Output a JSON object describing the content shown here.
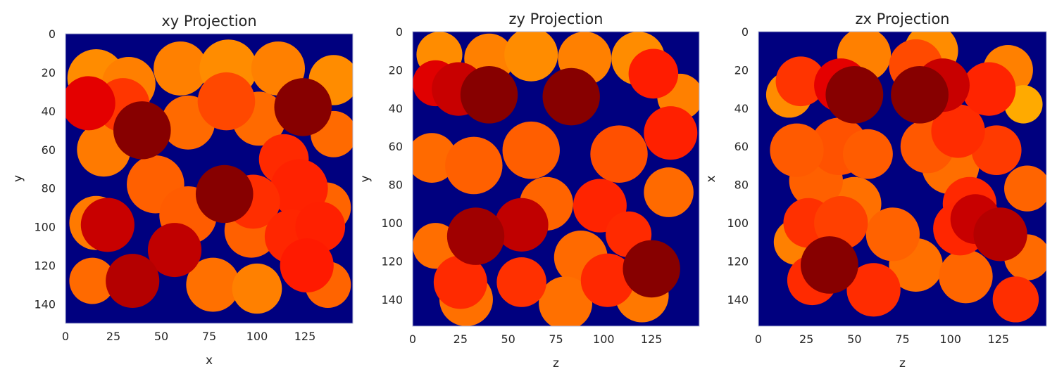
{
  "chart_data": [
    {
      "type": "heatmap",
      "title": "xy Projection",
      "xlabel": "x",
      "ylabel": "y",
      "xlim": [
        0,
        150
      ],
      "ylim": [
        150,
        0
      ],
      "xticks": [
        0,
        25,
        50,
        75,
        100,
        125
      ],
      "yticks": [
        0,
        20,
        40,
        60,
        80,
        100,
        120,
        140
      ],
      "grid": false,
      "background_color": "#00007f",
      "circles": [
        {
          "cx": 16,
          "cy": 23,
          "r": 15,
          "color": "#ff8c00"
        },
        {
          "cx": 33,
          "cy": 26,
          "r": 14,
          "color": "#ff7f00"
        },
        {
          "cx": 60,
          "cy": 18,
          "r": 14,
          "color": "#ff8000"
        },
        {
          "cx": 85,
          "cy": 18,
          "r": 15,
          "color": "#ff8c00"
        },
        {
          "cx": 111,
          "cy": 18,
          "r": 14,
          "color": "#ff8000"
        },
        {
          "cx": 140,
          "cy": 24,
          "r": 13,
          "color": "#ff8c00"
        },
        {
          "cx": 20,
          "cy": 60,
          "r": 14,
          "color": "#ff7a00"
        },
        {
          "cx": 64,
          "cy": 46,
          "r": 14,
          "color": "#ff6a00"
        },
        {
          "cx": 101,
          "cy": 44,
          "r": 14,
          "color": "#ff6a00"
        },
        {
          "cx": 140,
          "cy": 52,
          "r": 12,
          "color": "#ff6a00"
        },
        {
          "cx": 16,
          "cy": 98,
          "r": 14,
          "color": "#ff7a00"
        },
        {
          "cx": 47,
          "cy": 78,
          "r": 15,
          "color": "#ff6000"
        },
        {
          "cx": 64,
          "cy": 94,
          "r": 15,
          "color": "#ff5c00"
        },
        {
          "cx": 97,
          "cy": 102,
          "r": 14,
          "color": "#ff6000"
        },
        {
          "cx": 136,
          "cy": 90,
          "r": 13,
          "color": "#ff6400"
        },
        {
          "cx": 14,
          "cy": 128,
          "r": 12,
          "color": "#ff6a00"
        },
        {
          "cx": 77,
          "cy": 130,
          "r": 14,
          "color": "#ff7000"
        },
        {
          "cx": 137,
          "cy": 130,
          "r": 12,
          "color": "#ff6400"
        },
        {
          "cx": 100,
          "cy": 132,
          "r": 13,
          "color": "#ff8000"
        },
        {
          "cx": 84,
          "cy": 35,
          "r": 15,
          "color": "#ff4800"
        },
        {
          "cx": 30,
          "cy": 37,
          "r": 14,
          "color": "#ff3600"
        },
        {
          "cx": 114,
          "cy": 65,
          "r": 13,
          "color": "#ff2a00"
        },
        {
          "cx": 122,
          "cy": 80,
          "r": 15,
          "color": "#ff2200"
        },
        {
          "cx": 98,
          "cy": 87,
          "r": 14,
          "color": "#ff2e00"
        },
        {
          "cx": 118,
          "cy": 105,
          "r": 14,
          "color": "#ff2600"
        },
        {
          "cx": 133,
          "cy": 100,
          "r": 13,
          "color": "#ff2000"
        },
        {
          "cx": 126,
          "cy": 120,
          "r": 14,
          "color": "#ff1a00"
        },
        {
          "cx": 12,
          "cy": 36,
          "r": 14,
          "color": "#e40000"
        },
        {
          "cx": 22,
          "cy": 99,
          "r": 14,
          "color": "#c80000"
        },
        {
          "cx": 57,
          "cy": 112,
          "r": 14,
          "color": "#c00000"
        },
        {
          "cx": 35,
          "cy": 128,
          "r": 14,
          "color": "#b40000"
        },
        {
          "cx": 40,
          "cy": 50,
          "r": 15,
          "color": "#870000"
        },
        {
          "cx": 83,
          "cy": 83,
          "r": 15,
          "color": "#870000"
        },
        {
          "cx": 124,
          "cy": 38,
          "r": 15,
          "color": "#870000"
        }
      ]
    },
    {
      "type": "heatmap",
      "title": "zy Projection",
      "xlabel": "z",
      "ylabel": "y",
      "xlim": [
        0,
        150
      ],
      "ylim": [
        154,
        0
      ],
      "xticks": [
        0,
        25,
        50,
        75,
        100,
        125
      ],
      "yticks": [
        0,
        20,
        40,
        60,
        80,
        100,
        120,
        140
      ],
      "grid": false,
      "background_color": "#00007f",
      "circles": [
        {
          "cx": 14,
          "cy": 12,
          "r": 12,
          "color": "#ff8c00"
        },
        {
          "cx": 40,
          "cy": 14,
          "r": 13,
          "color": "#ff8000"
        },
        {
          "cx": 62,
          "cy": 12,
          "r": 14,
          "color": "#ff8c00"
        },
        {
          "cx": 90,
          "cy": 14,
          "r": 14,
          "color": "#ff8000"
        },
        {
          "cx": 118,
          "cy": 14,
          "r": 14,
          "color": "#ff8c00"
        },
        {
          "cx": 140,
          "cy": 34,
          "r": 12,
          "color": "#ff8000"
        },
        {
          "cx": 10,
          "cy": 66,
          "r": 13,
          "color": "#ff6a00"
        },
        {
          "cx": 32,
          "cy": 70,
          "r": 15,
          "color": "#ff6000"
        },
        {
          "cx": 62,
          "cy": 62,
          "r": 15,
          "color": "#ff5e00"
        },
        {
          "cx": 70,
          "cy": 90,
          "r": 14,
          "color": "#ff6400"
        },
        {
          "cx": 108,
          "cy": 64,
          "r": 15,
          "color": "#ff5000"
        },
        {
          "cx": 12,
          "cy": 112,
          "r": 12,
          "color": "#ff6e00"
        },
        {
          "cx": 88,
          "cy": 118,
          "r": 14,
          "color": "#ff6a00"
        },
        {
          "cx": 28,
          "cy": 140,
          "r": 14,
          "color": "#ff7000"
        },
        {
          "cx": 80,
          "cy": 142,
          "r": 14,
          "color": "#ff7000"
        },
        {
          "cx": 120,
          "cy": 138,
          "r": 14,
          "color": "#ff7800"
        },
        {
          "cx": 134,
          "cy": 84,
          "r": 13,
          "color": "#ff6a00"
        },
        {
          "cx": 57,
          "cy": 131,
          "r": 13,
          "color": "#ff3000"
        },
        {
          "cx": 102,
          "cy": 130,
          "r": 14,
          "color": "#ff2800"
        },
        {
          "cx": 25,
          "cy": 131,
          "r": 14,
          "color": "#ff2a00"
        },
        {
          "cx": 98,
          "cy": 91,
          "r": 14,
          "color": "#ff2400"
        },
        {
          "cx": 113,
          "cy": 106,
          "r": 12,
          "color": "#ff2a00"
        },
        {
          "cx": 135,
          "cy": 53,
          "r": 14,
          "color": "#ff2000"
        },
        {
          "cx": 126,
          "cy": 22,
          "r": 13,
          "color": "#ff1c00"
        },
        {
          "cx": 12,
          "cy": 27,
          "r": 12,
          "color": "#e00000"
        },
        {
          "cx": 24,
          "cy": 30,
          "r": 14,
          "color": "#c80000"
        },
        {
          "cx": 57,
          "cy": 101,
          "r": 14,
          "color": "#c00000"
        },
        {
          "cx": 40,
          "cy": 33,
          "r": 15,
          "color": "#870000"
        },
        {
          "cx": 83,
          "cy": 34,
          "r": 15,
          "color": "#870000"
        },
        {
          "cx": 33,
          "cy": 107,
          "r": 15,
          "color": "#a00000"
        },
        {
          "cx": 125,
          "cy": 124,
          "r": 15,
          "color": "#870000"
        }
      ]
    },
    {
      "type": "heatmap",
      "title": "zx Projection",
      "xlabel": "z",
      "ylabel": "x",
      "xlim": [
        0,
        150
      ],
      "ylim": [
        154,
        0
      ],
      "xticks": [
        0,
        25,
        50,
        75,
        100,
        125
      ],
      "yticks": [
        0,
        20,
        40,
        60,
        80,
        100,
        120,
        140
      ],
      "grid": false,
      "background_color": "#00007f",
      "circles": [
        {
          "cx": 16,
          "cy": 33,
          "r": 12,
          "color": "#ff8c00"
        },
        {
          "cx": 55,
          "cy": 12,
          "r": 14,
          "color": "#ff8000"
        },
        {
          "cx": 90,
          "cy": 10,
          "r": 14,
          "color": "#ff8c00"
        },
        {
          "cx": 130,
          "cy": 20,
          "r": 13,
          "color": "#ff8000"
        },
        {
          "cx": 138,
          "cy": 38,
          "r": 10,
          "color": "#ffaa00"
        },
        {
          "cx": 20,
          "cy": 110,
          "r": 12,
          "color": "#ff8000"
        },
        {
          "cx": 50,
          "cy": 90,
          "r": 14,
          "color": "#ff7000"
        },
        {
          "cx": 100,
          "cy": 70,
          "r": 15,
          "color": "#ff6e00"
        },
        {
          "cx": 140,
          "cy": 82,
          "r": 12,
          "color": "#ff6400"
        },
        {
          "cx": 140,
          "cy": 118,
          "r": 12,
          "color": "#ff6a00"
        },
        {
          "cx": 82,
          "cy": 122,
          "r": 14,
          "color": "#ff7000"
        },
        {
          "cx": 70,
          "cy": 106,
          "r": 14,
          "color": "#ff6200"
        },
        {
          "cx": 108,
          "cy": 128,
          "r": 14,
          "color": "#ff6600"
        },
        {
          "cx": 30,
          "cy": 78,
          "r": 14,
          "color": "#ff6000"
        },
        {
          "cx": 42,
          "cy": 60,
          "r": 15,
          "color": "#ff5200"
        },
        {
          "cx": 57,
          "cy": 64,
          "r": 13,
          "color": "#ff5c00"
        },
        {
          "cx": 88,
          "cy": 60,
          "r": 14,
          "color": "#ff5800"
        },
        {
          "cx": 20,
          "cy": 62,
          "r": 14,
          "color": "#ff5a00"
        },
        {
          "cx": 124,
          "cy": 62,
          "r": 13,
          "color": "#ff3a00"
        },
        {
          "cx": 104,
          "cy": 52,
          "r": 14,
          "color": "#ff2c00"
        },
        {
          "cx": 22,
          "cy": 26,
          "r": 13,
          "color": "#ff3400"
        },
        {
          "cx": 120,
          "cy": 30,
          "r": 14,
          "color": "#ff2400"
        },
        {
          "cx": 82,
          "cy": 18,
          "r": 14,
          "color": "#ff4a00"
        },
        {
          "cx": 110,
          "cy": 90,
          "r": 14,
          "color": "#ff2800"
        },
        {
          "cx": 105,
          "cy": 103,
          "r": 14,
          "color": "#ff2600"
        },
        {
          "cx": 26,
          "cy": 100,
          "r": 13,
          "color": "#ff3000"
        },
        {
          "cx": 43,
          "cy": 100,
          "r": 14,
          "color": "#ff4000"
        },
        {
          "cx": 60,
          "cy": 135,
          "r": 14,
          "color": "#ff2c00"
        },
        {
          "cx": 28,
          "cy": 130,
          "r": 13,
          "color": "#ff2a00"
        },
        {
          "cx": 134,
          "cy": 140,
          "r": 12,
          "color": "#ff2e00"
        },
        {
          "cx": 43,
          "cy": 28,
          "r": 14,
          "color": "#e40000"
        },
        {
          "cx": 96,
          "cy": 28,
          "r": 14,
          "color": "#c80000"
        },
        {
          "cx": 113,
          "cy": 98,
          "r": 13,
          "color": "#c80000"
        },
        {
          "cx": 126,
          "cy": 106,
          "r": 14,
          "color": "#b40000"
        },
        {
          "cx": 50,
          "cy": 33,
          "r": 15,
          "color": "#870000"
        },
        {
          "cx": 84,
          "cy": 33,
          "r": 15,
          "color": "#870000"
        },
        {
          "cx": 37,
          "cy": 122,
          "r": 15,
          "color": "#870000"
        }
      ]
    }
  ]
}
